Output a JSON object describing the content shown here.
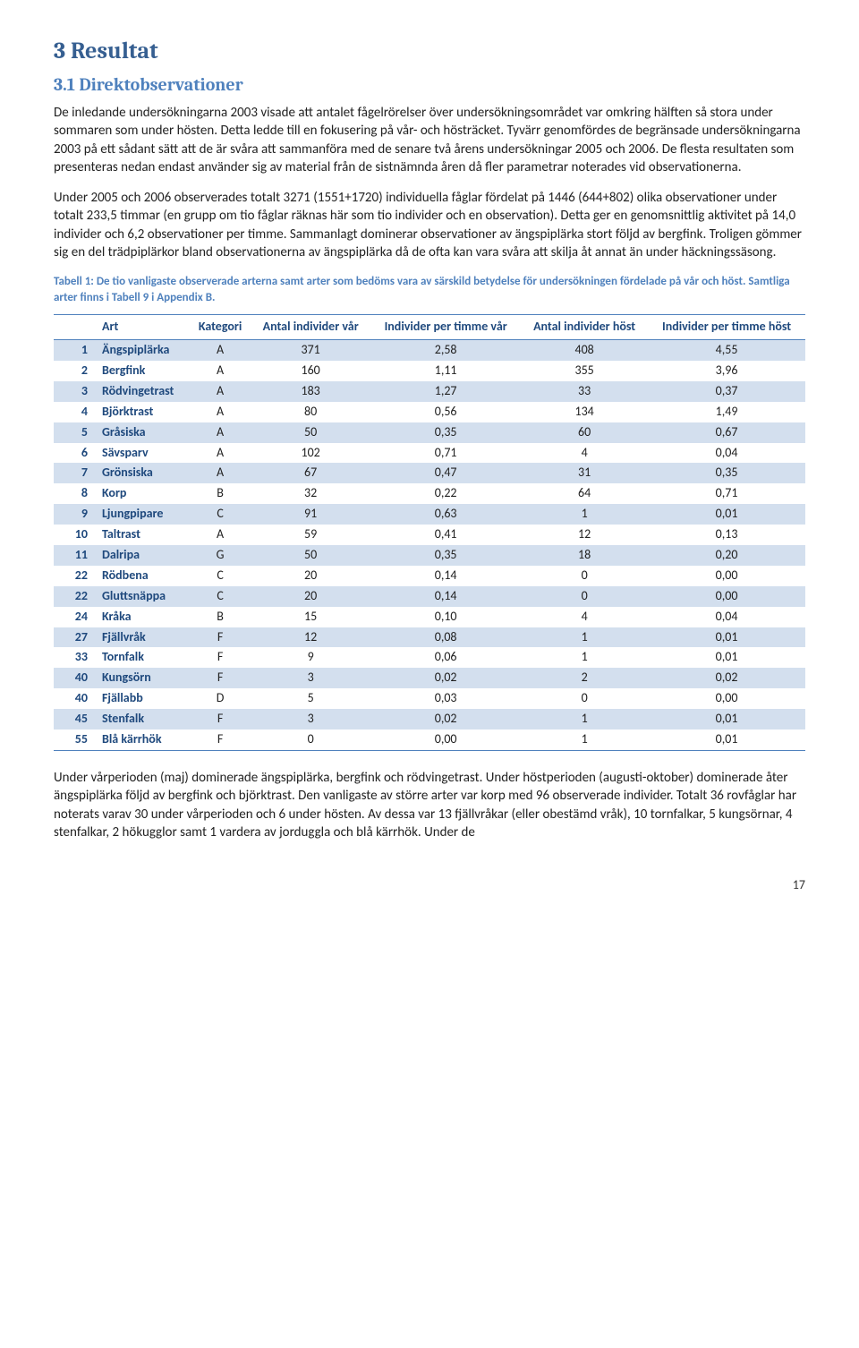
{
  "section": {
    "number": "3",
    "title": "Resultat"
  },
  "subsection": {
    "number": "3.1",
    "title": "Direktobservationer"
  },
  "paragraphs": {
    "p1": "De inledande undersökningarna 2003 visade att antalet fågelrörelser över undersökningsområdet var omkring hälften så stora under sommaren som under hösten. Detta ledde till en fokusering på vår- och höstrӓcket. Tyvärr genomfördes de begränsade undersökningarna 2003 på ett sådant sätt att de är svåra att sammanföra med de senare två årens undersökningar 2005 och 2006. De flesta resultaten som presenteras nedan endast använder sig av material från de sistnämnda åren då fler parametrar noterades vid observationerna.",
    "p2": "Under 2005 och 2006 observerades totalt 3271 (1551+1720) individuella fåglar fördelat på 1446 (644+802) olika observationer under totalt 233,5 timmar (en grupp om tio fåglar räknas här som tio individer och en observation). Detta ger en genomsnittlig aktivitet på 14,0 individer och 6,2 observationer per timme. Sammanlagt dominerar observationer av ängspiplärka stort följd av bergfink. Troligen gömmer sig en del trädpiplärkor bland observationerna av ängspiplärka då de ofta kan vara svåra att skilja åt annat än under häckningssäsong.",
    "p3": "Under vårperioden (maj) dominerade ängspiplärka, bergfink och rödvingetrast. Under höstperioden (augusti-oktober) dominerade åter ängspiplärka följd av bergfink och björktrast. Den vanligaste av större arter var korp med 96 observerade individer. Totalt 36 rovfåglar har noterats varav 30 under vårperioden och 6 under hösten. Av dessa var 13 fjällvråkar (eller obestämd vråk), 10 tornfalkar, 5 kungsörnar, 4 stenfalkar, 2 hökugglor samt 1 vardera av jorduggla och blå kärrhök. Under de"
  },
  "table_caption": "Tabell 1: De tio vanligaste observerade arterna samt arter som bedöms vara av särskild betydelse för undersökningen fördelade på vår och höst. Samtliga arter finns i Tabell 9 i Appendix B.",
  "table": {
    "columns": {
      "art": "Art",
      "kategori": "Kategori",
      "antal_var": "Antal individer vår",
      "ind_timme_var": "Individer per timme vår",
      "antal_host": "Antal individer höst",
      "ind_timme_host": "Individer per timme höst"
    },
    "rows": [
      {
        "idx": "1",
        "art": "Ängspiplärka",
        "kat": "A",
        "av": "371",
        "itv": "2,58",
        "ah": "408",
        "ith": "4,55"
      },
      {
        "idx": "2",
        "art": "Bergfink",
        "kat": "A",
        "av": "160",
        "itv": "1,11",
        "ah": "355",
        "ith": "3,96"
      },
      {
        "idx": "3",
        "art": "Rödvingetrast",
        "kat": "A",
        "av": "183",
        "itv": "1,27",
        "ah": "33",
        "ith": "0,37"
      },
      {
        "idx": "4",
        "art": "Björktrast",
        "kat": "A",
        "av": "80",
        "itv": "0,56",
        "ah": "134",
        "ith": "1,49"
      },
      {
        "idx": "5",
        "art": "Gråsiska",
        "kat": "A",
        "av": "50",
        "itv": "0,35",
        "ah": "60",
        "ith": "0,67"
      },
      {
        "idx": "6",
        "art": "Sävsparv",
        "kat": "A",
        "av": "102",
        "itv": "0,71",
        "ah": "4",
        "ith": "0,04"
      },
      {
        "idx": "7",
        "art": "Grönsiska",
        "kat": "A",
        "av": "67",
        "itv": "0,47",
        "ah": "31",
        "ith": "0,35"
      },
      {
        "idx": "8",
        "art": "Korp",
        "kat": "B",
        "av": "32",
        "itv": "0,22",
        "ah": "64",
        "ith": "0,71"
      },
      {
        "idx": "9",
        "art": "Ljungpipare",
        "kat": "C",
        "av": "91",
        "itv": "0,63",
        "ah": "1",
        "ith": "0,01"
      },
      {
        "idx": "10",
        "art": "Taltrast",
        "kat": "A",
        "av": "59",
        "itv": "0,41",
        "ah": "12",
        "ith": "0,13"
      },
      {
        "idx": "11",
        "art": "Dalripa",
        "kat": "G",
        "av": "50",
        "itv": "0,35",
        "ah": "18",
        "ith": "0,20"
      },
      {
        "idx": "22",
        "art": "Rödbena",
        "kat": "C",
        "av": "20",
        "itv": "0,14",
        "ah": "0",
        "ith": "0,00"
      },
      {
        "idx": "22",
        "art": "Gluttsnäppa",
        "kat": "C",
        "av": "20",
        "itv": "0,14",
        "ah": "0",
        "ith": "0,00"
      },
      {
        "idx": "24",
        "art": "Kråka",
        "kat": "B",
        "av": "15",
        "itv": "0,10",
        "ah": "4",
        "ith": "0,04"
      },
      {
        "idx": "27",
        "art": "Fjällvråk",
        "kat": "F",
        "av": "12",
        "itv": "0,08",
        "ah": "1",
        "ith": "0,01"
      },
      {
        "idx": "33",
        "art": "Tornfalk",
        "kat": "F",
        "av": "9",
        "itv": "0,06",
        "ah": "1",
        "ith": "0,01"
      },
      {
        "idx": "40",
        "art": "Kungsörn",
        "kat": "F",
        "av": "3",
        "itv": "0,02",
        "ah": "2",
        "ith": "0,02"
      },
      {
        "idx": "40",
        "art": "Fjällabb",
        "kat": "D",
        "av": "5",
        "itv": "0,03",
        "ah": "0",
        "ith": "0,00"
      },
      {
        "idx": "45",
        "art": "Stenfalk",
        "kat": "F",
        "av": "3",
        "itv": "0,02",
        "ah": "1",
        "ith": "0,01"
      },
      {
        "idx": "55",
        "art": "Blå kärrhök",
        "kat": "F",
        "av": "0",
        "itv": "0,00",
        "ah": "1",
        "ith": "0,01"
      }
    ]
  },
  "page_number": "17",
  "colors": {
    "heading_dark": "#365f91",
    "heading_light": "#4f81bd",
    "stripe": "#d3dfee",
    "table_header_text": "#1f497d"
  }
}
